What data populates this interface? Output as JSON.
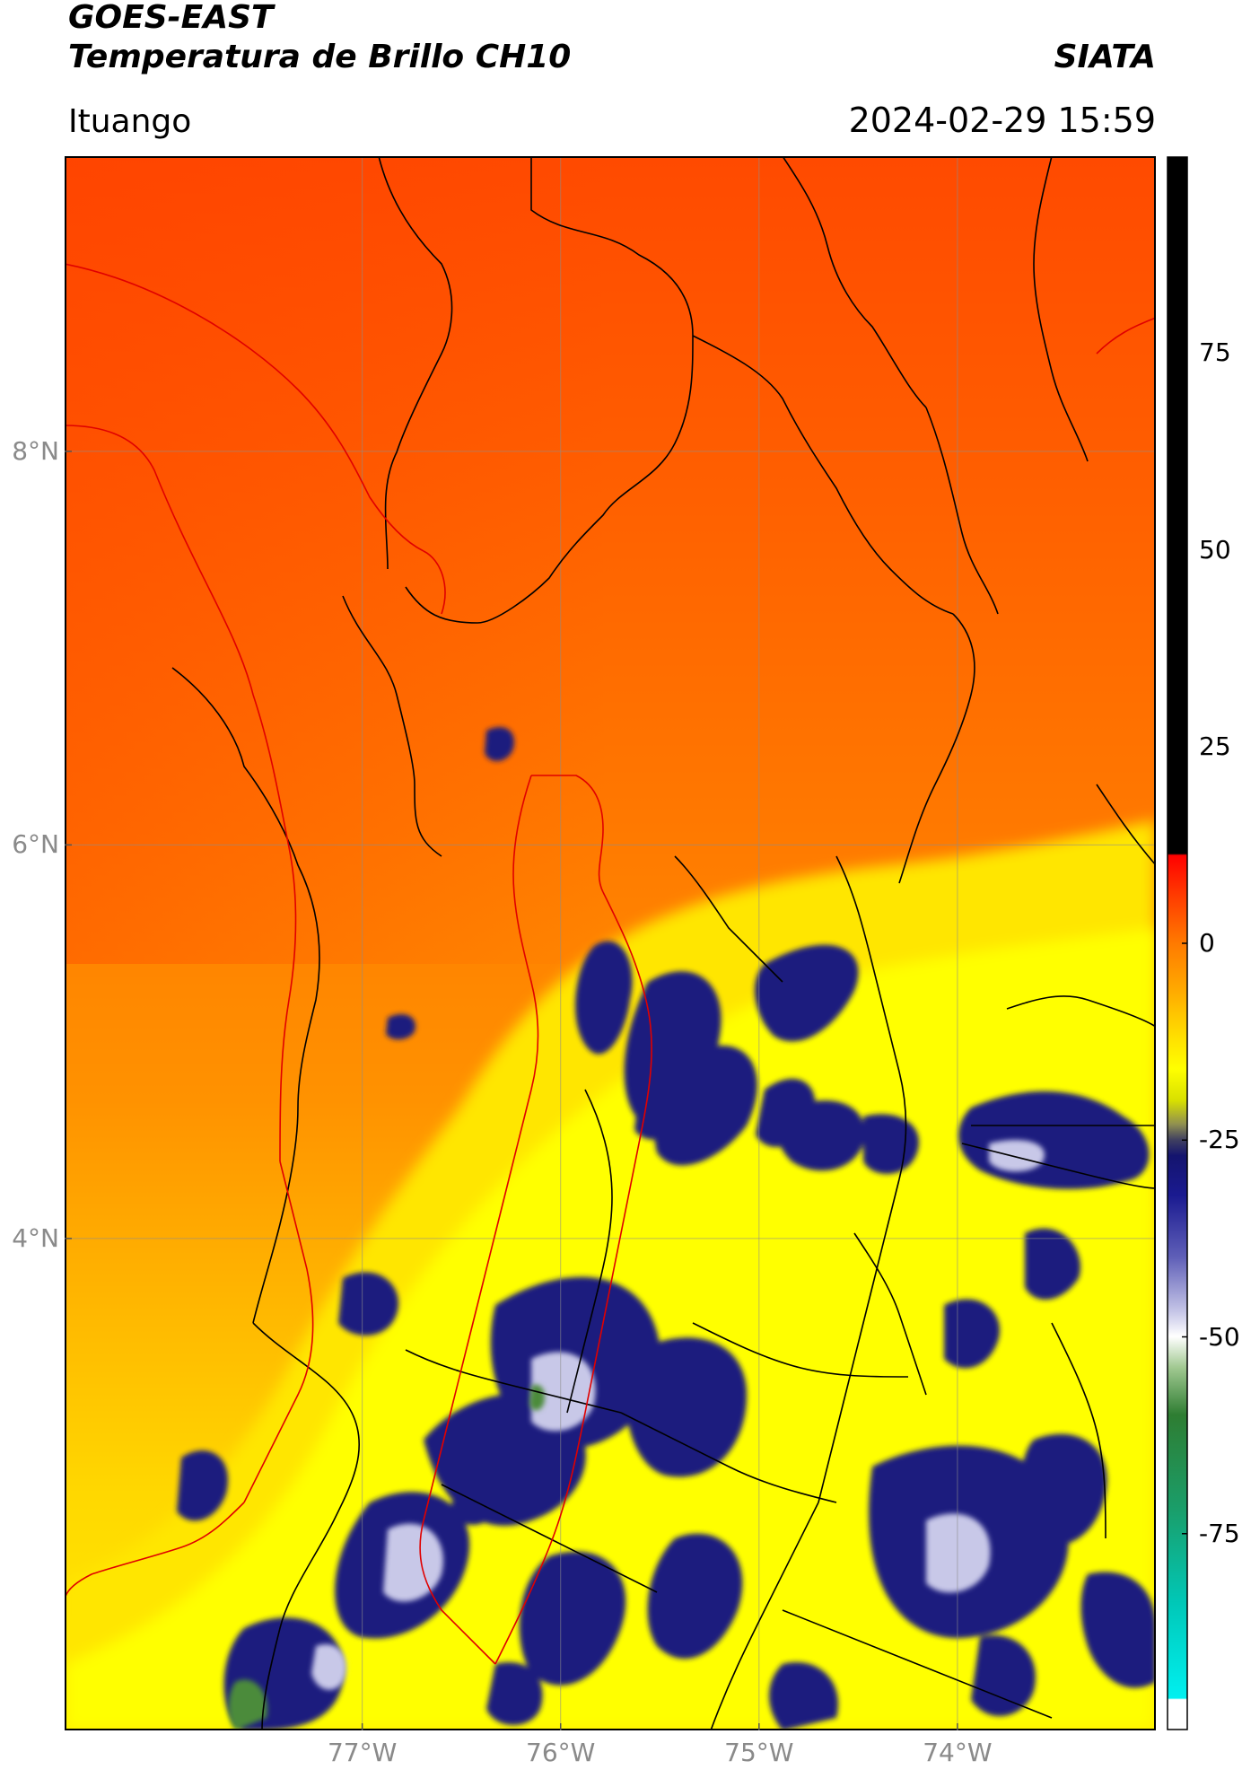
{
  "header": {
    "satellite": "GOES-EAST",
    "product": "Temperatura de Brillo CH10",
    "agency": "SIATA",
    "region": "Ituango",
    "datetime": "2024-02-29 15:59"
  },
  "map": {
    "lon_range": [
      -78.5,
      -73.0
    ],
    "lat_range": [
      1.5,
      9.5
    ],
    "gridlines": true,
    "lon_ticks": [
      -77,
      -76,
      -75,
      -74
    ],
    "lon_tick_labels": [
      "77°W",
      "76°W",
      "75°W",
      "74°W"
    ],
    "lat_ticks": [
      8,
      6,
      4
    ],
    "lat_tick_labels": [
      "8°N",
      "6°N",
      "4°N"
    ],
    "highlight_boundary_color": "#e00000",
    "admin_boundary_color": "#000000"
  },
  "colorbar": {
    "range": [
      -100,
      100
    ],
    "ticks": [
      75,
      50,
      25,
      0,
      -25,
      -50,
      -75
    ],
    "tick_labels": [
      "75",
      "50",
      "25",
      "0",
      "-25",
      "-50",
      "-75"
    ],
    "colors": {
      "warm_top": "#000000",
      "red": "#ff0000",
      "orange": "#ff7a00",
      "yellow": "#ffff00",
      "navy": "#14146e",
      "white": "#ffffff",
      "green": "#2e7d32",
      "cyan": "#00e5e5"
    }
  }
}
